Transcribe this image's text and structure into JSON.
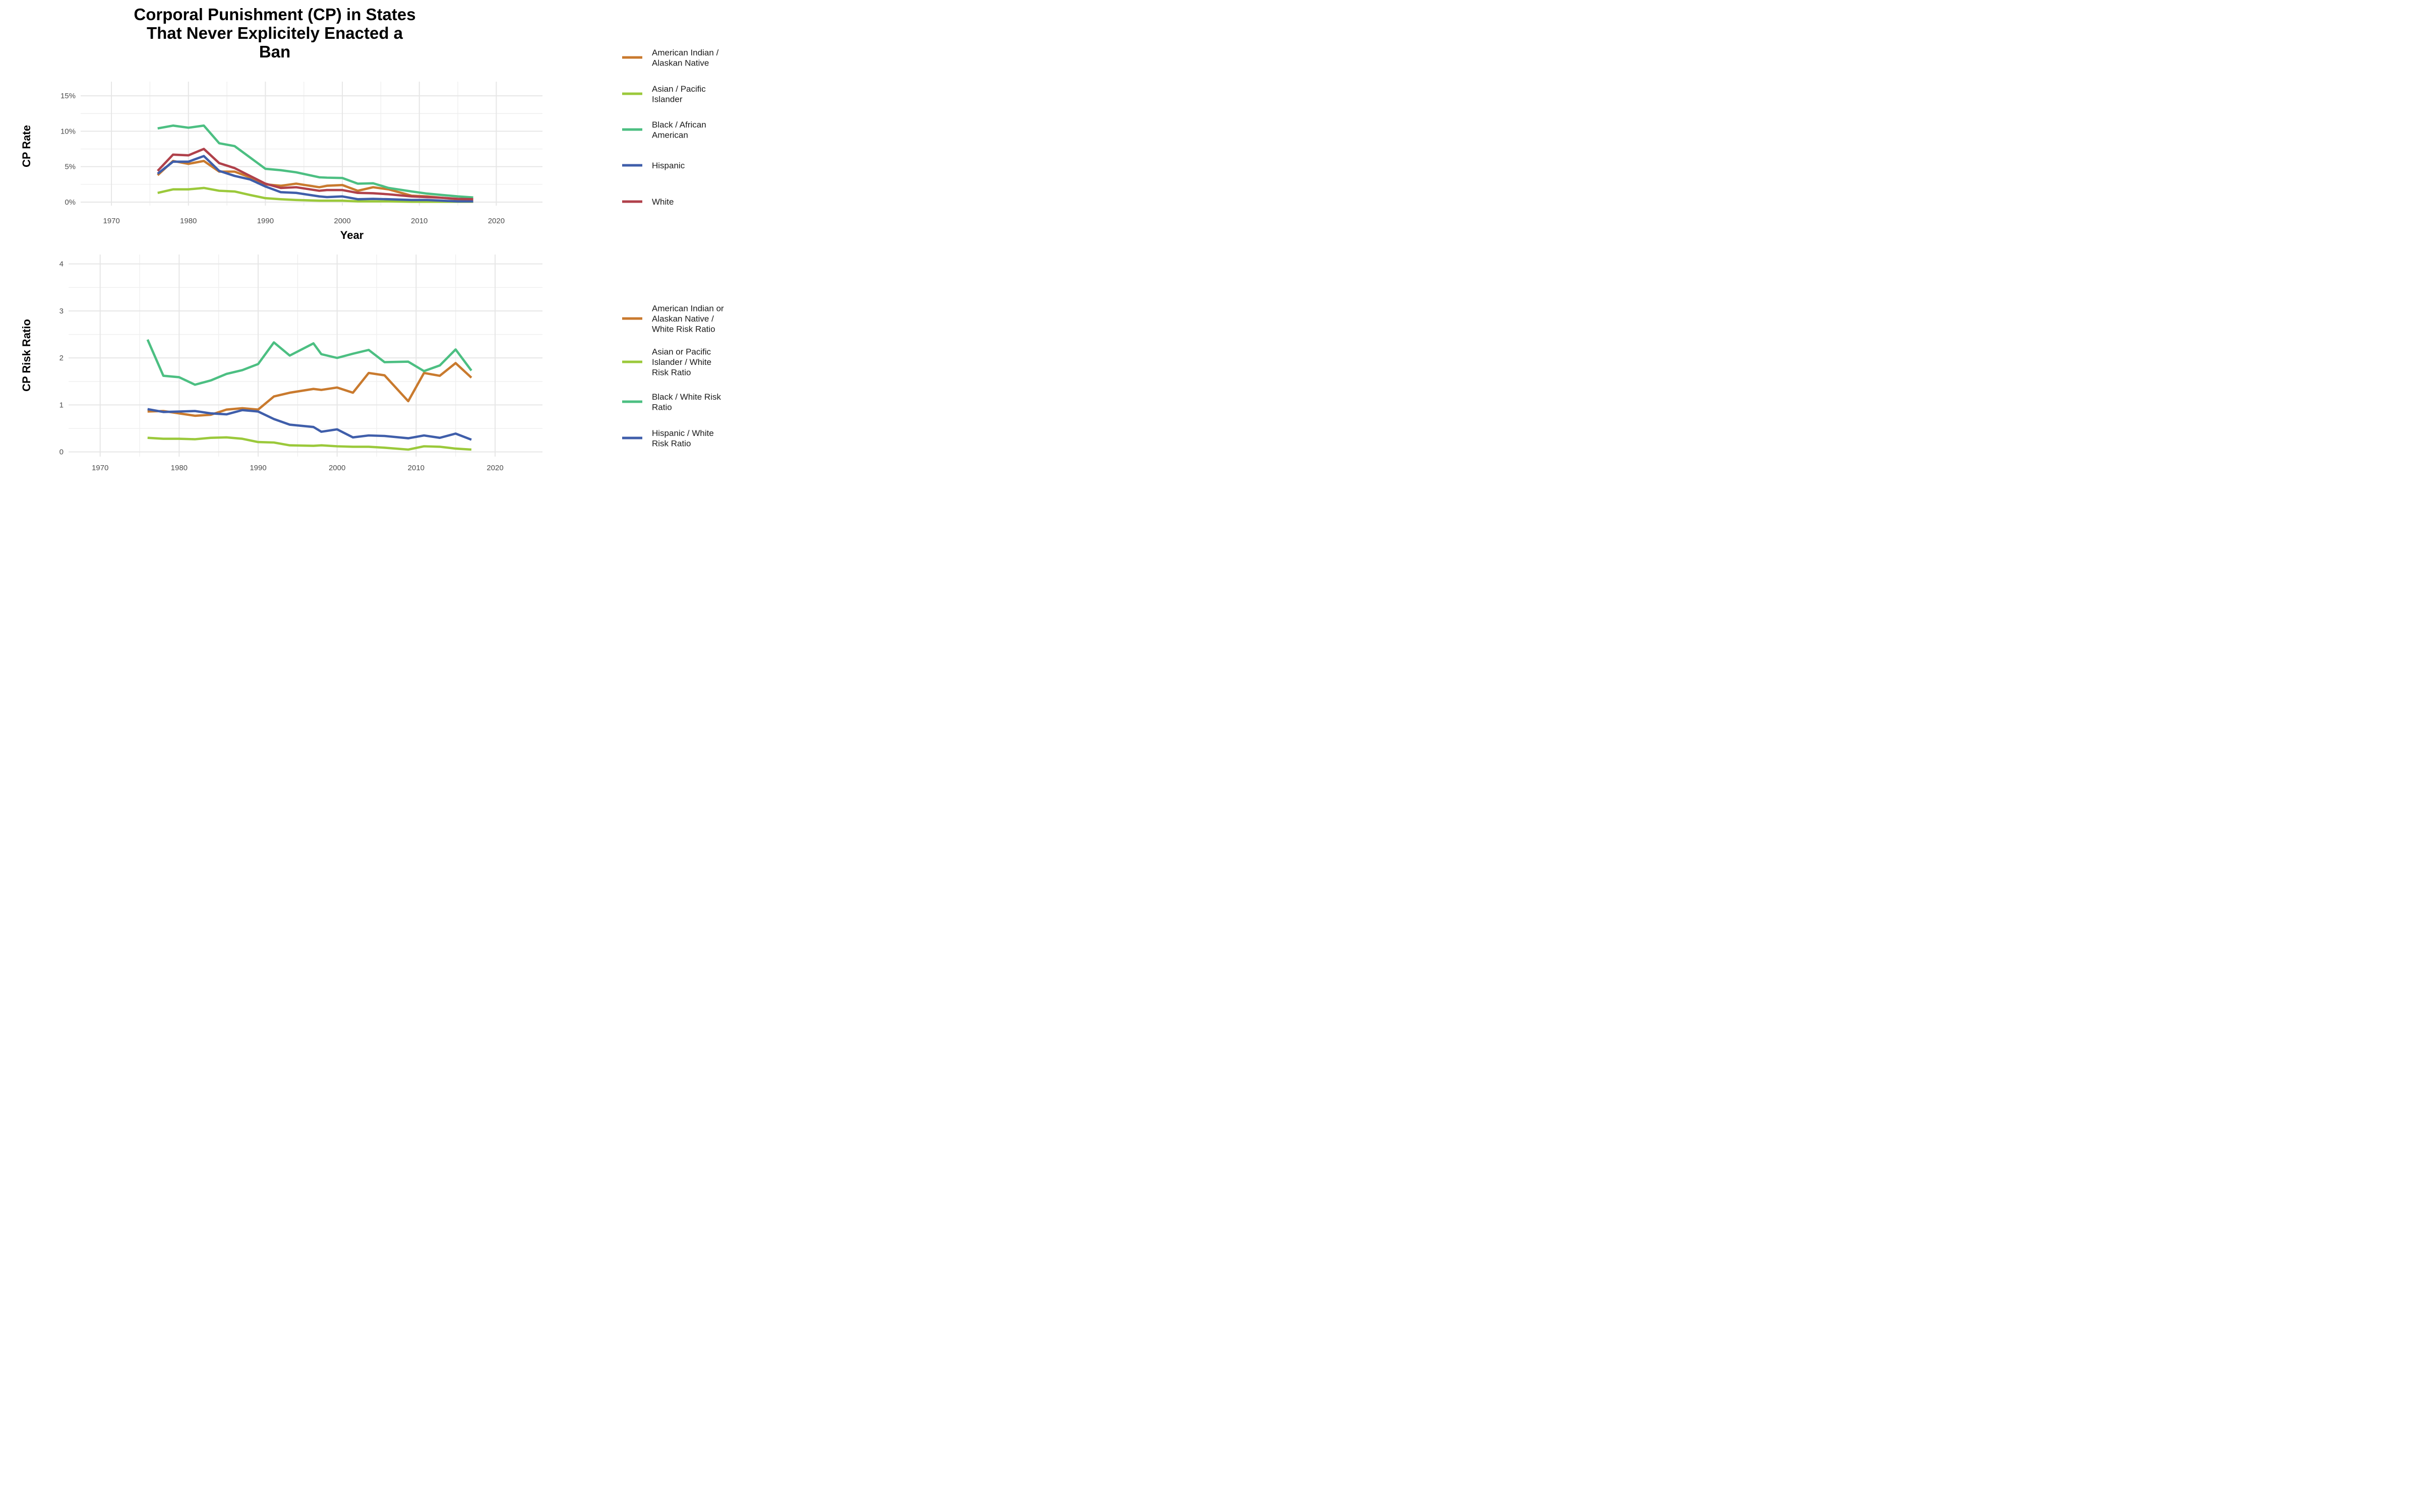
{
  "title_lines": [
    "Corporal Punishment (CP) in States",
    "That Never Explicitely Enacted a",
    "Ban"
  ],
  "chart_data": [
    {
      "type": "line",
      "xlabel": "Year",
      "ylabel": "CP Rate",
      "xlim": [
        1966,
        2026
      ],
      "ylim": [
        -0.5,
        17
      ],
      "x_ticks": [
        1970,
        1980,
        1990,
        2000,
        2010,
        2020
      ],
      "y_ticks": [
        0,
        5,
        10,
        15
      ],
      "y_tick_labels": [
        "0%",
        "5%",
        "10%",
        "15%"
      ],
      "grid": true,
      "legend_position": "right",
      "series": [
        {
          "name": "American Indian / Alaskan Native",
          "color": "#c97a2e",
          "points": [
            [
              1976,
              3.8
            ],
            [
              1978,
              5.8
            ],
            [
              1980,
              5.4
            ],
            [
              1982,
              5.8
            ],
            [
              1984,
              4.3
            ],
            [
              1986,
              4.3
            ],
            [
              1988,
              3.5
            ],
            [
              1990,
              2.5
            ],
            [
              1992,
              2.3
            ],
            [
              1994,
              2.6
            ],
            [
              1997,
              2.1
            ],
            [
              1998,
              2.3
            ],
            [
              2000,
              2.4
            ],
            [
              2002,
              1.6
            ],
            [
              2004,
              2.1
            ],
            [
              2006,
              1.8
            ],
            [
              2009,
              0.9
            ],
            [
              2011,
              0.8
            ],
            [
              2013,
              0.6
            ],
            [
              2015,
              0.4
            ],
            [
              2017,
              0.4
            ]
          ]
        },
        {
          "name": "Asian / Pacific Islander",
          "color": "#9bc93b",
          "points": [
            [
              1976,
              1.3
            ],
            [
              1978,
              1.8
            ],
            [
              1980,
              1.8
            ],
            [
              1982,
              2.0
            ],
            [
              1984,
              1.6
            ],
            [
              1986,
              1.5
            ],
            [
              1988,
              1.0
            ],
            [
              1990,
              0.55
            ],
            [
              1992,
              0.4
            ],
            [
              1994,
              0.3
            ],
            [
              1997,
              0.2
            ],
            [
              1998,
              0.2
            ],
            [
              2000,
              0.2
            ],
            [
              2002,
              0.1
            ],
            [
              2004,
              0.1
            ],
            [
              2006,
              0.1
            ],
            [
              2009,
              0.05
            ],
            [
              2011,
              0.05
            ],
            [
              2013,
              0.05
            ],
            [
              2015,
              0.05
            ],
            [
              2017,
              0.05
            ]
          ]
        },
        {
          "name": "Black / African American",
          "color": "#4cbf82",
          "points": [
            [
              1976,
              10.4
            ],
            [
              1978,
              10.8
            ],
            [
              1980,
              10.5
            ],
            [
              1982,
              10.8
            ],
            [
              1984,
              8.3
            ],
            [
              1986,
              7.9
            ],
            [
              1988,
              6.3
            ],
            [
              1990,
              4.7
            ],
            [
              1992,
              4.5
            ],
            [
              1994,
              4.2
            ],
            [
              1997,
              3.5
            ],
            [
              1998,
              3.45
            ],
            [
              2000,
              3.4
            ],
            [
              2002,
              2.6
            ],
            [
              2004,
              2.65
            ],
            [
              2006,
              2.0
            ],
            [
              2009,
              1.5
            ],
            [
              2011,
              1.2
            ],
            [
              2013,
              1.0
            ],
            [
              2015,
              0.8
            ],
            [
              2017,
              0.65
            ]
          ]
        },
        {
          "name": "Hispanic",
          "color": "#3f5eaa",
          "points": [
            [
              1976,
              4.0
            ],
            [
              1978,
              5.7
            ],
            [
              1980,
              5.7
            ],
            [
              1982,
              6.5
            ],
            [
              1984,
              4.4
            ],
            [
              1986,
              3.7
            ],
            [
              1988,
              3.2
            ],
            [
              1990,
              2.2
            ],
            [
              1992,
              1.4
            ],
            [
              1994,
              1.3
            ],
            [
              1997,
              0.8
            ],
            [
              1998,
              0.7
            ],
            [
              2000,
              0.8
            ],
            [
              2002,
              0.4
            ],
            [
              2004,
              0.45
            ],
            [
              2006,
              0.4
            ],
            [
              2009,
              0.3
            ],
            [
              2011,
              0.3
            ],
            [
              2013,
              0.2
            ],
            [
              2015,
              0.1
            ],
            [
              2017,
              0.1
            ]
          ]
        },
        {
          "name": "White",
          "color": "#b0414b",
          "points": [
            [
              1976,
              4.4
            ],
            [
              1978,
              6.7
            ],
            [
              1980,
              6.6
            ],
            [
              1982,
              7.5
            ],
            [
              1984,
              5.5
            ],
            [
              1986,
              4.8
            ],
            [
              1988,
              3.7
            ],
            [
              1990,
              2.6
            ],
            [
              1992,
              2.0
            ],
            [
              1994,
              2.1
            ],
            [
              1997,
              1.6
            ],
            [
              1998,
              1.7
            ],
            [
              2000,
              1.7
            ],
            [
              2002,
              1.3
            ],
            [
              2004,
              1.25
            ],
            [
              2006,
              1.1
            ],
            [
              2009,
              0.8
            ],
            [
              2011,
              0.7
            ],
            [
              2013,
              0.6
            ],
            [
              2015,
              0.45
            ],
            [
              2017,
              0.4
            ]
          ]
        }
      ]
    },
    {
      "type": "line",
      "xlabel": "",
      "ylabel": "CP Risk Ratio",
      "xlim": [
        1966,
        2026
      ],
      "ylim": [
        -0.1,
        4.2
      ],
      "x_ticks": [
        1970,
        1980,
        1990,
        2000,
        2010,
        2020
      ],
      "y_ticks": [
        0,
        1,
        2,
        3,
        4
      ],
      "y_tick_labels": [
        "0",
        "1",
        "2",
        "3",
        "4"
      ],
      "grid": true,
      "legend_position": "right",
      "series": [
        {
          "name": "American Indian or Alaskan Native / White Risk Ratio",
          "color": "#c97a2e",
          "points": [
            [
              1976,
              0.86
            ],
            [
              1978,
              0.87
            ],
            [
              1980,
              0.82
            ],
            [
              1982,
              0.77
            ],
            [
              1984,
              0.79
            ],
            [
              1986,
              0.9
            ],
            [
              1988,
              0.93
            ],
            [
              1990,
              0.9
            ],
            [
              1992,
              1.18
            ],
            [
              1994,
              1.26
            ],
            [
              1997,
              1.34
            ],
            [
              1998,
              1.32
            ],
            [
              2000,
              1.37
            ],
            [
              2002,
              1.26
            ],
            [
              2004,
              1.68
            ],
            [
              2006,
              1.63
            ],
            [
              2009,
              1.08
            ],
            [
              2011,
              1.68
            ],
            [
              2013,
              1.62
            ],
            [
              2015,
              1.89
            ],
            [
              2017,
              1.58
            ]
          ]
        },
        {
          "name": "Asian or Pacific Islander / White Risk Ratio",
          "color": "#9bc93b",
          "points": [
            [
              1976,
              0.3
            ],
            [
              1978,
              0.28
            ],
            [
              1980,
              0.28
            ],
            [
              1982,
              0.27
            ],
            [
              1984,
              0.3
            ],
            [
              1986,
              0.31
            ],
            [
              1988,
              0.28
            ],
            [
              1990,
              0.21
            ],
            [
              1992,
              0.2
            ],
            [
              1994,
              0.14
            ],
            [
              1997,
              0.13
            ],
            [
              1998,
              0.14
            ],
            [
              2000,
              0.12
            ],
            [
              2002,
              0.11
            ],
            [
              2004,
              0.11
            ],
            [
              2006,
              0.09
            ],
            [
              2009,
              0.05
            ],
            [
              2011,
              0.12
            ],
            [
              2013,
              0.11
            ],
            [
              2015,
              0.07
            ],
            [
              2017,
              0.05
            ]
          ]
        },
        {
          "name": "Black / White Risk Ratio",
          "color": "#4cbf82",
          "points": [
            [
              1976,
              2.39
            ],
            [
              1978,
              1.62
            ],
            [
              1980,
              1.59
            ],
            [
              1982,
              1.43
            ],
            [
              1984,
              1.52
            ],
            [
              1986,
              1.66
            ],
            [
              1988,
              1.74
            ],
            [
              1990,
              1.87
            ],
            [
              1992,
              2.33
            ],
            [
              1994,
              2.05
            ],
            [
              1997,
              2.31
            ],
            [
              1998,
              2.08
            ],
            [
              2000,
              2.0
            ],
            [
              2002,
              2.09
            ],
            [
              2004,
              2.17
            ],
            [
              2006,
              1.91
            ],
            [
              2009,
              1.92
            ],
            [
              2011,
              1.72
            ],
            [
              2013,
              1.84
            ],
            [
              2015,
              2.18
            ],
            [
              2017,
              1.73
            ]
          ]
        },
        {
          "name": "Hispanic / White Risk Ratio",
          "color": "#3f5eaa",
          "points": [
            [
              1976,
              0.91
            ],
            [
              1978,
              0.85
            ],
            [
              1980,
              0.86
            ],
            [
              1982,
              0.87
            ],
            [
              1984,
              0.82
            ],
            [
              1986,
              0.8
            ],
            [
              1988,
              0.89
            ],
            [
              1990,
              0.86
            ],
            [
              1992,
              0.7
            ],
            [
              1994,
              0.58
            ],
            [
              1997,
              0.53
            ],
            [
              1998,
              0.43
            ],
            [
              2000,
              0.48
            ],
            [
              2002,
              0.31
            ],
            [
              2004,
              0.35
            ],
            [
              2006,
              0.34
            ],
            [
              2009,
              0.29
            ],
            [
              2011,
              0.35
            ],
            [
              2013,
              0.3
            ],
            [
              2015,
              0.39
            ],
            [
              2017,
              0.26
            ]
          ]
        }
      ]
    }
  ],
  "legend_labels": [
    [
      [
        "American Indian /",
        "Alaskan Native"
      ],
      [
        "Asian / Pacific",
        "Islander"
      ],
      [
        "Black / African",
        "American"
      ],
      [
        "Hispanic"
      ],
      [
        "White"
      ]
    ],
    [
      [
        "American Indian or",
        "Alaskan Native /",
        "White Risk Ratio"
      ],
      [
        "Asian or Pacific",
        "Islander / White",
        "Risk Ratio"
      ],
      [
        "Black / White Risk",
        "Ratio"
      ],
      [
        "Hispanic / White",
        "Risk Ratio"
      ]
    ]
  ]
}
